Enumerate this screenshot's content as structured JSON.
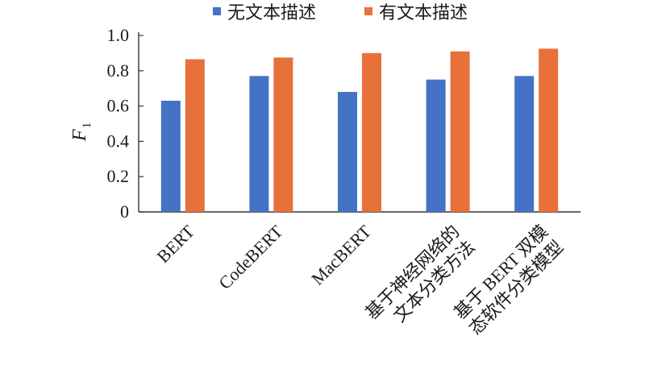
{
  "chart_data": {
    "type": "bar",
    "categories": [
      [
        "BERT"
      ],
      [
        "CodeBERT"
      ],
      [
        "MacBERT"
      ],
      [
        "基于神经网络的",
        "文本分类方法"
      ],
      [
        "基于 BERT 双模",
        "态软件分类模型"
      ]
    ],
    "series": [
      {
        "name": "无文本描述",
        "color": "#4472C4",
        "values": [
          0.63,
          0.77,
          0.68,
          0.75,
          0.77
        ]
      },
      {
        "name": "有文本描述",
        "color": "#E8703A",
        "values": [
          0.865,
          0.875,
          0.9,
          0.91,
          0.925
        ]
      }
    ],
    "ylabel": {
      "main": "F",
      "sub": "1"
    },
    "ylim": [
      0,
      1.0
    ],
    "yticks": [
      "0",
      "0.2",
      "0.4",
      "0.6",
      "0.8",
      "1.0"
    ],
    "legend_position": "top",
    "grid": false
  }
}
